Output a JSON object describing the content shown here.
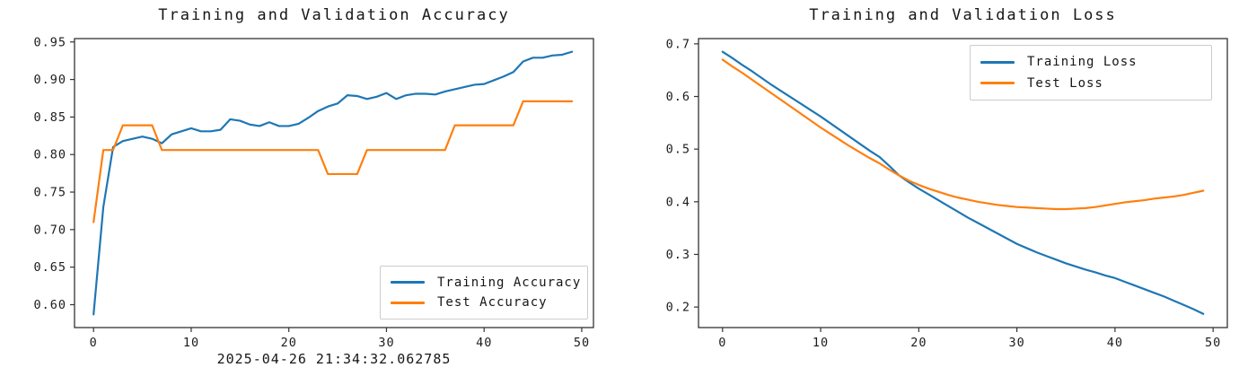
{
  "figure": {
    "background": "#ffffff"
  },
  "colors": {
    "training_line": "#1f77b4",
    "test_line": "#ff7f0e",
    "text": "#161616",
    "spine": "#333333",
    "legend_border": "#cccccc"
  },
  "chart_data": [
    {
      "id": "accuracy",
      "type": "line",
      "title": "Training and Validation Accuracy",
      "xlabel": "2025-04-26 21:34:32.062785",
      "ylabel": "",
      "x_is_epoch_index": true,
      "xlim": [
        -1.95,
        51.2
      ],
      "ylim": [
        0.5695,
        0.9545
      ],
      "xticks": [
        0,
        10,
        20,
        30,
        40,
        50
      ],
      "xtick_labels": [
        "0",
        "10",
        "20",
        "30",
        "40",
        "50"
      ],
      "yticks": [
        0.6,
        0.65,
        0.7,
        0.75,
        0.8,
        0.85,
        0.9,
        0.95
      ],
      "ytick_labels": [
        "0.60",
        "0.65",
        "0.70",
        "0.75",
        "0.80",
        "0.85",
        "0.90",
        "0.95"
      ],
      "grid": false,
      "legend_position": "lower right",
      "series": [
        {
          "name": "Training Accuracy",
          "color": "#1f77b4",
          "values": [
            0.587,
            0.73,
            0.81,
            0.818,
            0.821,
            0.824,
            0.821,
            0.815,
            0.827,
            0.831,
            0.835,
            0.831,
            0.831,
            0.833,
            0.847,
            0.845,
            0.84,
            0.838,
            0.843,
            0.838,
            0.838,
            0.841,
            0.849,
            0.858,
            0.864,
            0.868,
            0.879,
            0.878,
            0.874,
            0.877,
            0.882,
            0.874,
            0.879,
            0.881,
            0.881,
            0.88,
            0.884,
            0.887,
            0.89,
            0.893,
            0.894,
            0.899,
            0.904,
            0.91,
            0.924,
            0.929,
            0.929,
            0.932,
            0.933,
            0.937
          ]
        },
        {
          "name": "Test Accuracy",
          "color": "#ff7f0e",
          "values": [
            0.71,
            0.806,
            0.806,
            0.839,
            0.839,
            0.839,
            0.839,
            0.806,
            0.806,
            0.806,
            0.806,
            0.806,
            0.806,
            0.806,
            0.806,
            0.806,
            0.806,
            0.806,
            0.806,
            0.806,
            0.806,
            0.806,
            0.806,
            0.806,
            0.774,
            0.774,
            0.774,
            0.774,
            0.806,
            0.806,
            0.806,
            0.806,
            0.806,
            0.806,
            0.806,
            0.806,
            0.806,
            0.839,
            0.839,
            0.839,
            0.839,
            0.839,
            0.839,
            0.839,
            0.871,
            0.871,
            0.871,
            0.871,
            0.871,
            0.871
          ]
        }
      ]
    },
    {
      "id": "loss",
      "type": "line",
      "title": "Training and Validation Loss",
      "xlabel": "",
      "ylabel": "",
      "x_is_epoch_index": true,
      "xlim": [
        -2.45,
        51.45
      ],
      "ylim": [
        0.161,
        0.71
      ],
      "xticks": [
        0,
        10,
        20,
        30,
        40,
        50
      ],
      "xtick_labels": [
        "0",
        "10",
        "20",
        "30",
        "40",
        "50"
      ],
      "yticks": [
        0.2,
        0.3,
        0.4,
        0.5,
        0.6,
        0.7
      ],
      "ytick_labels": [
        "0.2",
        "0.3",
        "0.4",
        "0.5",
        "0.6",
        "0.7"
      ],
      "grid": false,
      "legend_position": "upper right",
      "series": [
        {
          "name": "Training Loss",
          "color": "#1f77b4",
          "values": [
            0.685,
            0.673,
            0.66,
            0.648,
            0.635,
            0.622,
            0.61,
            0.598,
            0.586,
            0.574,
            0.562,
            0.549,
            0.536,
            0.523,
            0.51,
            0.497,
            0.485,
            0.468,
            0.45,
            0.437,
            0.425,
            0.414,
            0.403,
            0.392,
            0.381,
            0.37,
            0.36,
            0.35,
            0.34,
            0.33,
            0.32,
            0.312,
            0.304,
            0.297,
            0.29,
            0.283,
            0.277,
            0.271,
            0.266,
            0.26,
            0.255,
            0.248,
            0.241,
            0.234,
            0.227,
            0.22,
            0.212,
            0.204,
            0.196,
            0.187
          ]
        },
        {
          "name": "Test Loss",
          "color": "#ff7f0e",
          "values": [
            0.67,
            0.657,
            0.645,
            0.632,
            0.619,
            0.606,
            0.593,
            0.58,
            0.567,
            0.554,
            0.541,
            0.529,
            0.517,
            0.505,
            0.494,
            0.483,
            0.473,
            0.461,
            0.45,
            0.44,
            0.432,
            0.425,
            0.419,
            0.413,
            0.408,
            0.404,
            0.4,
            0.397,
            0.394,
            0.392,
            0.39,
            0.389,
            0.388,
            0.387,
            0.386,
            0.386,
            0.387,
            0.388,
            0.39,
            0.393,
            0.396,
            0.399,
            0.401,
            0.403,
            0.406,
            0.408,
            0.41,
            0.413,
            0.417,
            0.421
          ]
        }
      ]
    }
  ]
}
